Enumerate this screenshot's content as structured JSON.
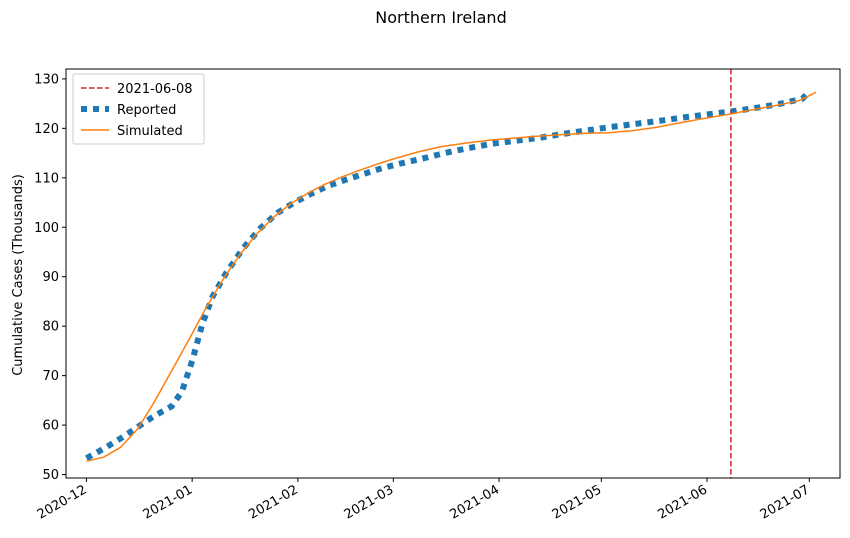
{
  "chart_data": {
    "type": "line",
    "title": "Northern Ireland",
    "xlabel": "",
    "ylabel": "Cumulative Cases (Thousands)",
    "xlim": [
      "2020-11-25",
      "2021-07-10"
    ],
    "ylim": [
      49.3,
      132
    ],
    "x_ticks": [
      "2020-12",
      "2021-01",
      "2021-02",
      "2021-03",
      "2021-04",
      "2021-05",
      "2021-06",
      "2021-07"
    ],
    "y_ticks": [
      50,
      60,
      70,
      80,
      90,
      100,
      110,
      120,
      130
    ],
    "grid": false,
    "legend_position": "top-left",
    "vline": {
      "name": "2021-06-08",
      "x": "2021-06-08",
      "color": "#d62728",
      "style": "dashed"
    },
    "series": [
      {
        "name": "Reported",
        "color": "#1f77b4",
        "style": "dotted",
        "x": [
          "2020-12-01",
          "2020-12-06",
          "2020-12-11",
          "2020-12-16",
          "2020-12-21",
          "2020-12-26",
          "2020-12-29",
          "2021-01-01",
          "2021-01-04",
          "2021-01-07",
          "2021-01-11",
          "2021-01-16",
          "2021-01-21",
          "2021-01-26",
          "2021-01-31",
          "2021-02-05",
          "2021-02-10",
          "2021-02-15",
          "2021-02-20",
          "2021-02-25",
          "2021-03-02",
          "2021-03-09",
          "2021-03-16",
          "2021-03-23",
          "2021-03-30",
          "2021-04-06",
          "2021-04-13",
          "2021-04-20",
          "2021-04-27",
          "2021-05-04",
          "2021-05-11",
          "2021-05-18",
          "2021-05-25",
          "2021-06-01",
          "2021-06-08",
          "2021-06-15",
          "2021-06-22",
          "2021-06-29",
          "2021-07-01"
        ],
        "values": [
          53.3,
          55.2,
          57.3,
          59.6,
          61.9,
          63.8,
          66.8,
          73.0,
          80.5,
          86.0,
          90.8,
          95.8,
          99.8,
          102.9,
          105.0,
          106.8,
          108.4,
          109.6,
          110.7,
          111.8,
          112.7,
          113.8,
          115.0,
          116.0,
          116.9,
          117.5,
          118.1,
          118.9,
          119.6,
          120.3,
          120.9,
          121.5,
          122.2,
          122.8,
          123.4,
          124.1,
          124.9,
          126.0,
          127.5
        ]
      },
      {
        "name": "Simulated",
        "color": "#ff7f0e",
        "style": "solid",
        "x": [
          "2020-12-01",
          "2020-12-06",
          "2020-12-11",
          "2020-12-16",
          "2020-12-21",
          "2020-12-26",
          "2020-12-31",
          "2021-01-05",
          "2021-01-10",
          "2021-01-15",
          "2021-01-20",
          "2021-01-25",
          "2021-01-30",
          "2021-02-04",
          "2021-02-09",
          "2021-02-14",
          "2021-02-19",
          "2021-02-24",
          "2021-03-01",
          "2021-03-08",
          "2021-03-15",
          "2021-03-22",
          "2021-03-29",
          "2021-04-05",
          "2021-04-12",
          "2021-04-19",
          "2021-04-26",
          "2021-05-03",
          "2021-05-10",
          "2021-05-17",
          "2021-05-24",
          "2021-05-31",
          "2021-06-07",
          "2021-06-14",
          "2021-06-21",
          "2021-06-28",
          "2021-07-03"
        ],
        "values": [
          52.7,
          53.5,
          55.5,
          59.2,
          64.8,
          71.0,
          77.2,
          83.6,
          89.4,
          94.5,
          98.7,
          102.1,
          104.8,
          106.9,
          108.7,
          110.2,
          111.5,
          112.7,
          113.8,
          115.2,
          116.3,
          117.0,
          117.6,
          118.0,
          118.4,
          118.7,
          119.0,
          119.1,
          119.5,
          120.2,
          121.1,
          122.0,
          122.8,
          123.7,
          124.6,
          125.6,
          127.3
        ]
      }
    ]
  }
}
